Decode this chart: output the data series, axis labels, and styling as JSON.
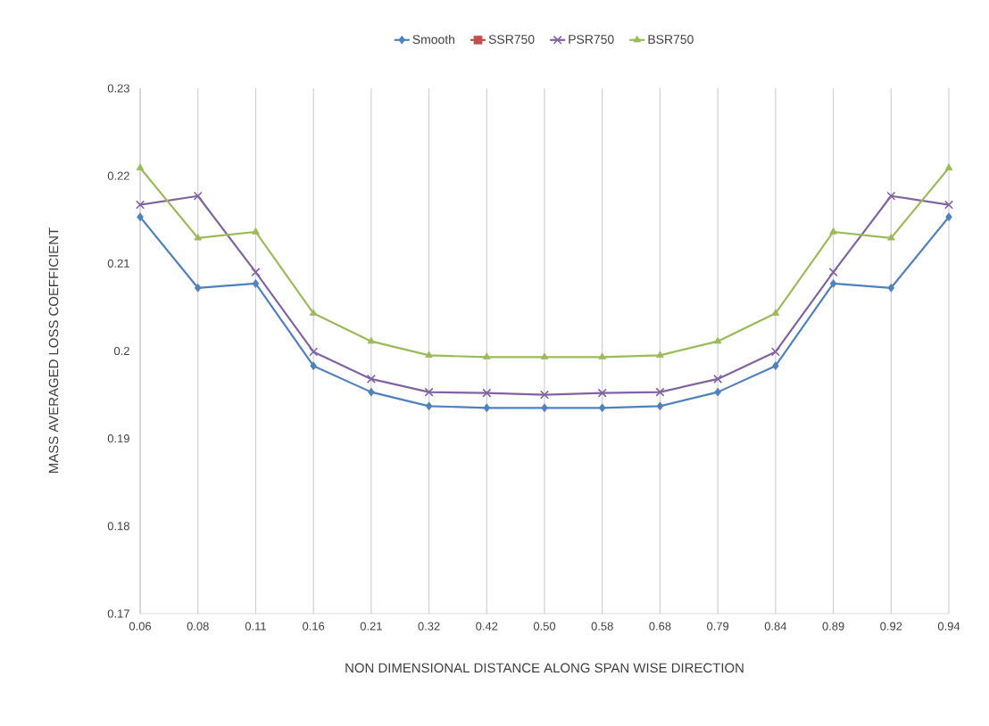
{
  "chart_data": {
    "type": "line",
    "xlabel": "NON DIMENSIONAL DISTANCE ALONG SPAN WISE DIRECTION",
    "ylabel": "MASS AVERAGED LOSS COEFFICIENT",
    "categories": [
      "0.06",
      "0.08",
      "0.11",
      "0.16",
      "0.21",
      "0.32",
      "0.42",
      "0.50",
      "0.58",
      "0.68",
      "0.79",
      "0.84",
      "0.89",
      "0.92",
      "0.94"
    ],
    "series": [
      {
        "name": "Smooth",
        "color": "#4f81bd",
        "marker": "diamond",
        "values": [
          0.2153,
          0.2072,
          0.2077,
          0.1983,
          0.1953,
          0.1937,
          0.1935,
          0.1935,
          0.1935,
          0.1937,
          0.1953,
          0.1983,
          0.2077,
          0.2072,
          0.2153
        ]
      },
      {
        "name": "SSR750",
        "color": "#c0504d",
        "marker": "square",
        "values": [
          null,
          null,
          null,
          null,
          null,
          null,
          null,
          null,
          null,
          null,
          null,
          null,
          null,
          null,
          null
        ]
      },
      {
        "name": "PSR750",
        "color": "#8064a2",
        "marker": "cross",
        "values": [
          0.2167,
          0.2177,
          0.209,
          0.1999,
          0.1968,
          0.1953,
          0.1952,
          0.195,
          0.1952,
          0.1953,
          0.1968,
          0.1999,
          0.209,
          0.2177,
          0.2167
        ]
      },
      {
        "name": "BSR750",
        "color": "#9bbb59",
        "marker": "triangle",
        "values": [
          0.2209,
          0.2129,
          0.2136,
          0.2043,
          0.2011,
          0.1995,
          0.1993,
          0.1993,
          0.1993,
          0.1995,
          0.2011,
          0.2043,
          0.2136,
          0.2129,
          0.2209
        ]
      }
    ],
    "ylim": [
      0.17,
      0.23
    ],
    "yticks": [
      {
        "value": 0.17,
        "label": "0.17"
      },
      {
        "value": 0.18,
        "label": "0.18"
      },
      {
        "value": 0.19,
        "label": "0.19"
      },
      {
        "value": 0.2,
        "label": "0.2"
      },
      {
        "value": 0.21,
        "label": "0.21"
      },
      {
        "value": 0.22,
        "label": "0.22"
      },
      {
        "value": 0.23,
        "label": "0.23"
      }
    ],
    "grid": "x",
    "legend": "top",
    "line_style": "solid"
  }
}
